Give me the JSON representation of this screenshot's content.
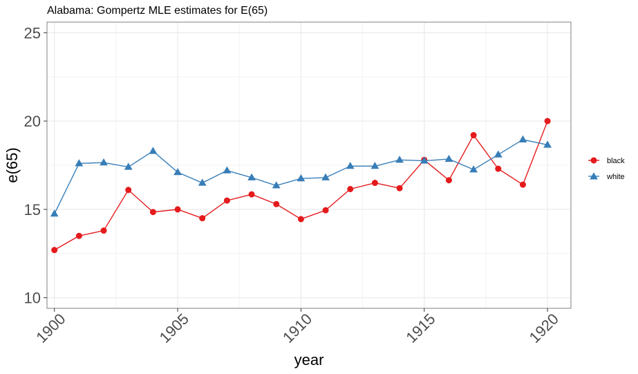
{
  "chart_data": {
    "type": "line",
    "title": "Alabama: Gompertz MLE estimates for E(65)",
    "xlabel": "year",
    "ylabel": "e(65)",
    "xlim": [
      1899.7,
      1920.95
    ],
    "ylim": [
      9.4,
      25.6
    ],
    "x_ticks": [
      1900,
      1905,
      1910,
      1915,
      1920
    ],
    "y_ticks": [
      10,
      15,
      20,
      25
    ],
    "grid": true,
    "legend_position": "right",
    "x": [
      1900,
      1901,
      1902,
      1903,
      1904,
      1905,
      1906,
      1907,
      1908,
      1909,
      1910,
      1911,
      1912,
      1913,
      1914,
      1915,
      1916,
      1917,
      1918,
      1919,
      1920
    ],
    "series": [
      {
        "name": "black",
        "color": "#e41a1c",
        "marker": "circle",
        "values": [
          12.7,
          13.5,
          13.8,
          16.1,
          14.85,
          15.0,
          14.5,
          15.5,
          15.85,
          15.3,
          14.45,
          14.95,
          16.15,
          16.5,
          16.2,
          17.8,
          16.65,
          19.2,
          17.3,
          16.4,
          20.0
        ]
      },
      {
        "name": "white",
        "color": "#377eb8",
        "marker": "triangle",
        "values": [
          14.75,
          17.6,
          17.65,
          17.4,
          18.3,
          17.1,
          16.5,
          17.2,
          16.8,
          16.35,
          16.75,
          16.8,
          17.45,
          17.45,
          17.8,
          17.75,
          17.85,
          17.25,
          18.1,
          18.95,
          18.65
        ]
      }
    ]
  }
}
